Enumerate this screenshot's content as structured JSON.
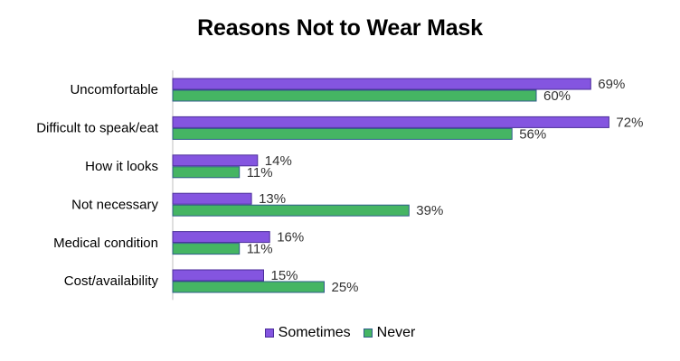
{
  "chart_data": {
    "type": "bar",
    "orientation": "horizontal",
    "title": "Reasons Not to Wear Mask",
    "xlabel": "",
    "ylabel": "",
    "categories": [
      "Uncomfortable",
      "Difficult to speak/eat",
      "How it looks",
      "Not necessary",
      "Medical condition",
      "Cost/availability"
    ],
    "series": [
      {
        "name": "Sometimes",
        "values": [
          69,
          72,
          14,
          13,
          16,
          15
        ],
        "labels": [
          "69%",
          "72%",
          "14%",
          "13%",
          "16%",
          "15%"
        ],
        "color": "#8455e0"
      },
      {
        "name": "Never",
        "values": [
          60,
          56,
          11,
          39,
          11,
          25
        ],
        "labels": [
          "60%",
          "56%",
          "11%",
          "39%",
          "11%",
          "25%"
        ],
        "color": "#45b563"
      }
    ],
    "xlim": [
      0,
      80
    ],
    "grid": false,
    "legend_position": "bottom"
  }
}
